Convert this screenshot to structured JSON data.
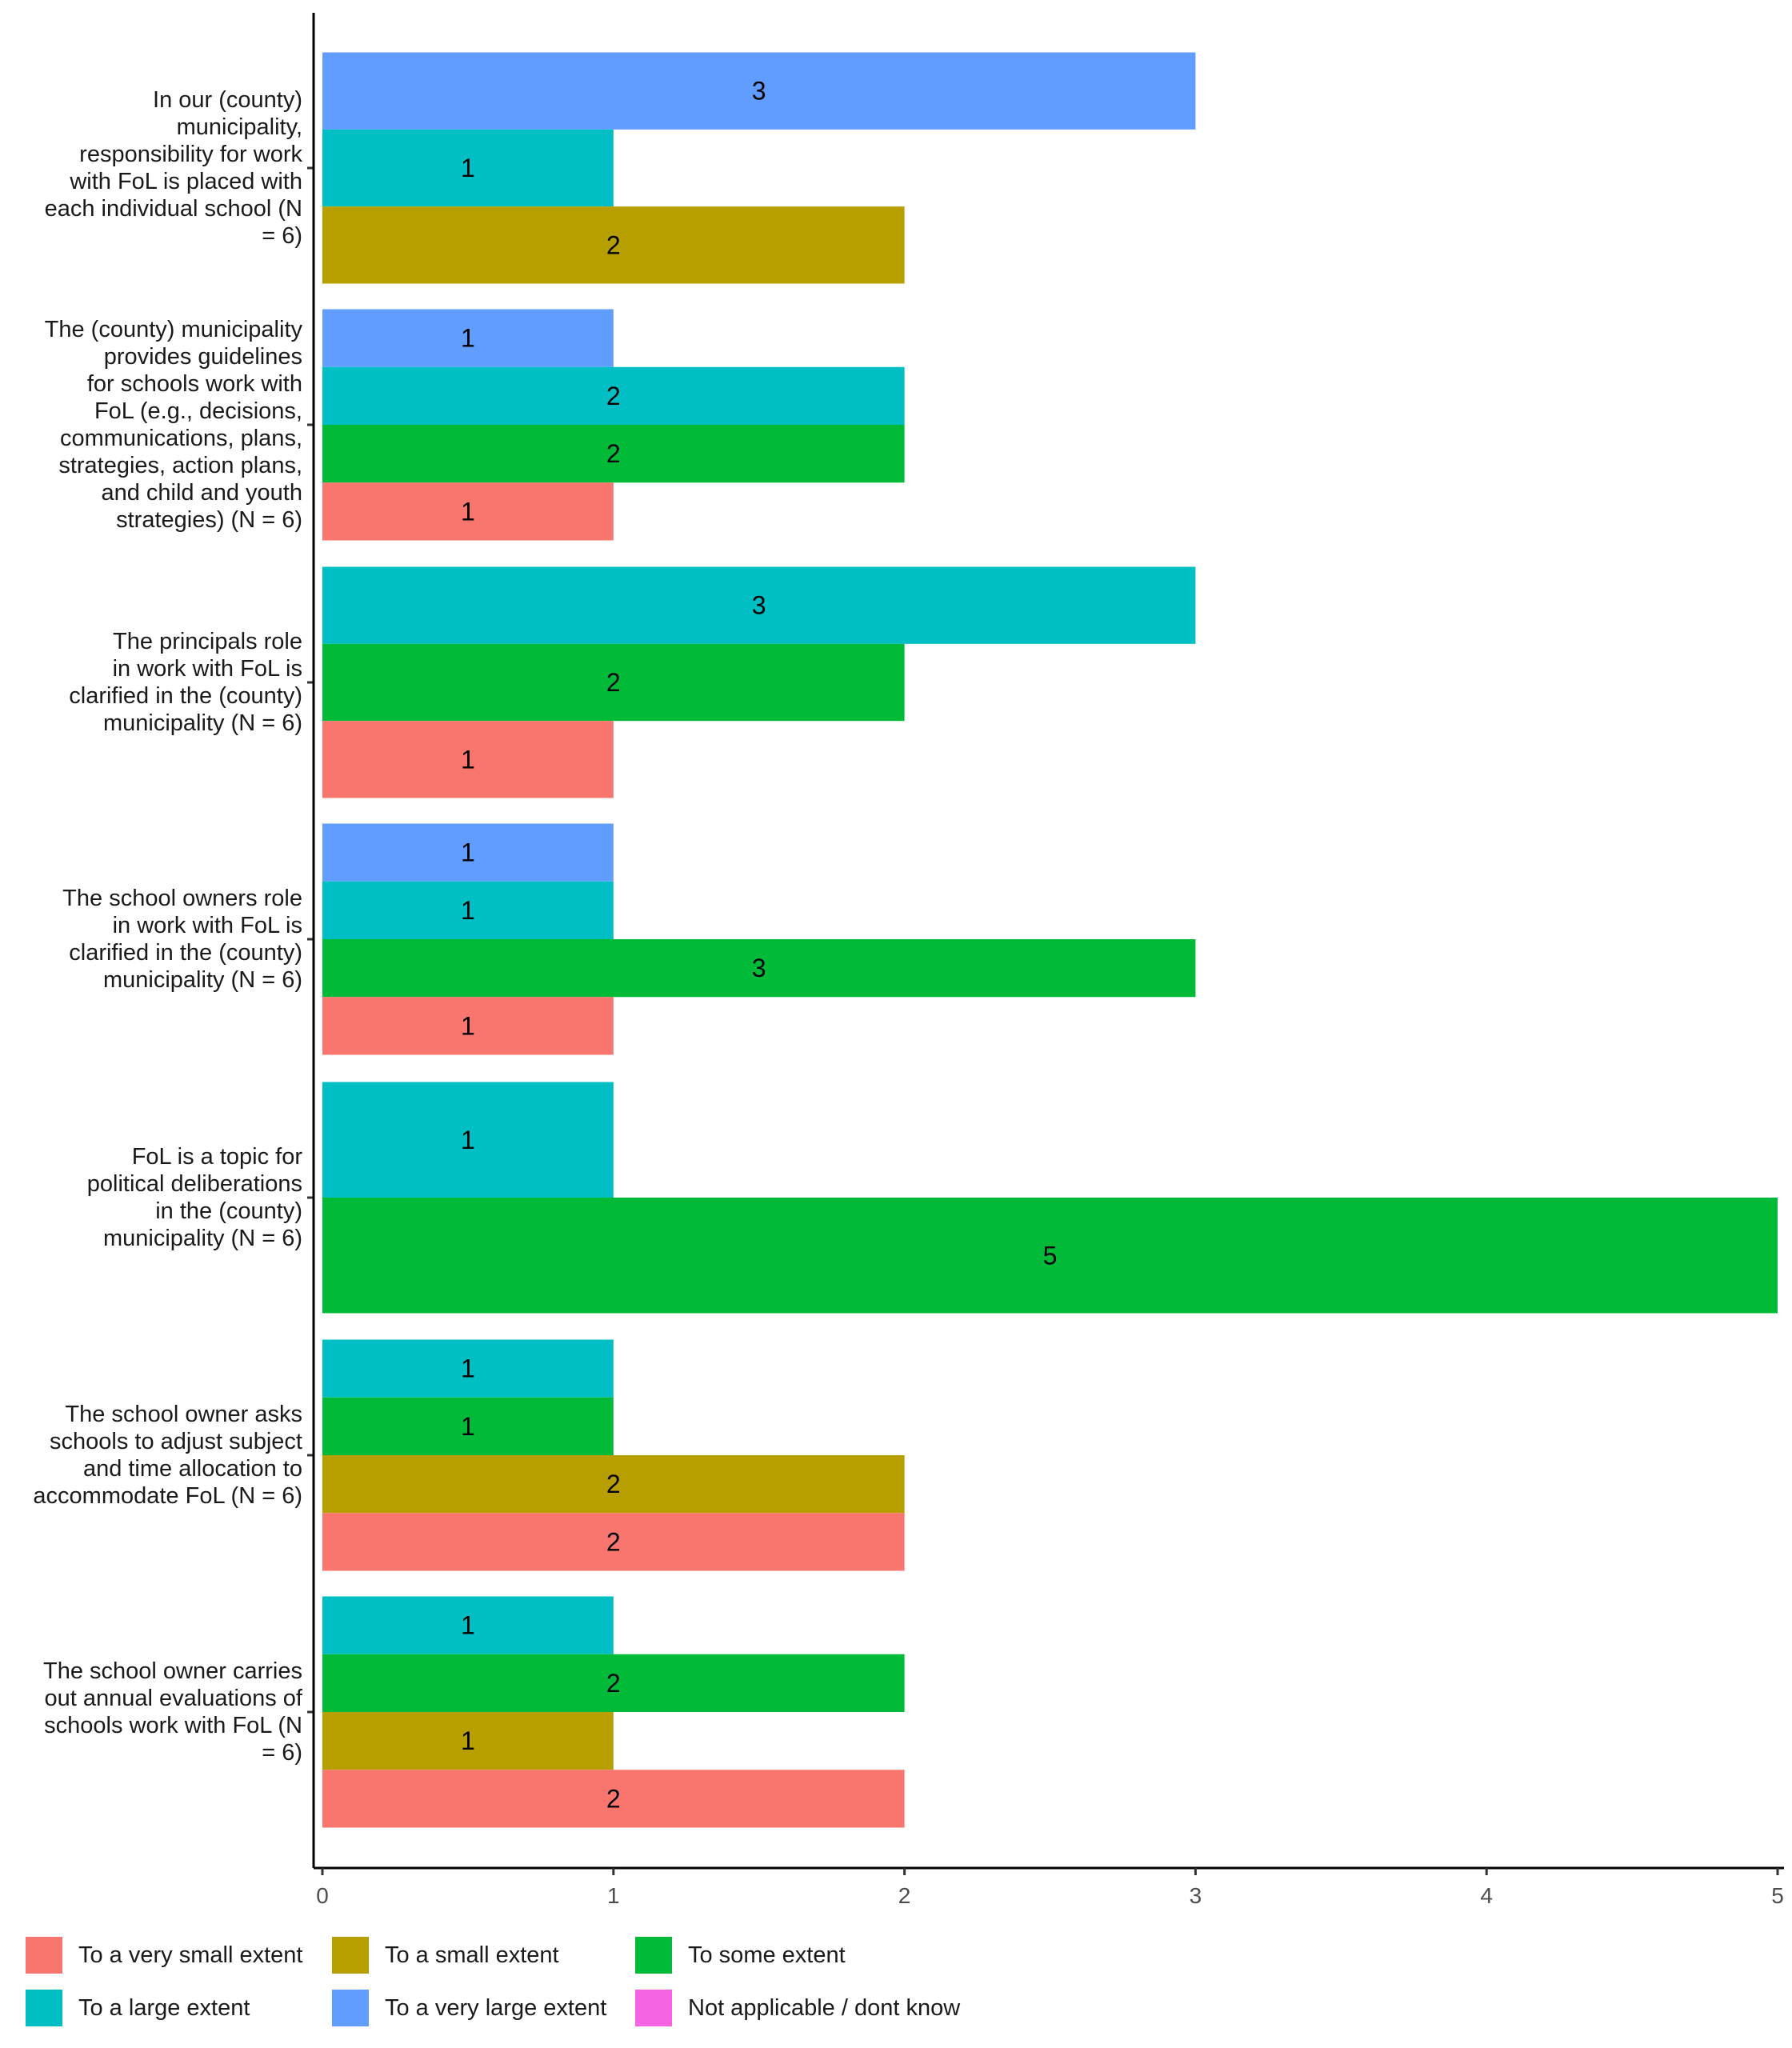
{
  "chart_data": {
    "type": "bar",
    "orientation": "horizontal",
    "title": "",
    "xlabel": "",
    "ylabel": "",
    "xlim": [
      0,
      5
    ],
    "x_ticks": [
      "0",
      "1",
      "2",
      "3",
      "4",
      "5"
    ],
    "grid": false,
    "legend_position": "bottom",
    "categories": [
      "In our (county) municipality, responsibility for work with FoL is placed with each individual school (N = 6)",
      "The (county) municipality provides guidelines for schools work with FoL (e.g., decisions, communications, plans, strategies, action plans, and child and youth strategies) (N = 6)",
      "The principals role in work with FoL is clarified in the (county) municipality (N = 6)",
      "The school owners role in work with FoL is clarified in the (county) municipality (N = 6)",
      "FoL is a topic for political deliberations in the (county) municipality (N = 6)",
      "The school owner asks schools to adjust subject and time allocation to accommodate FoL (N = 6)",
      "The school owner carries out annual evaluations of schools work with FoL (N = 6)"
    ],
    "category_lines": [
      [
        "In our (county)",
        "municipality,",
        "responsibility for work",
        "with FoL is placed with",
        "each individual school (N",
        "= 6)"
      ],
      [
        "The (county) municipality",
        "provides guidelines",
        "for schools work with",
        "FoL (e.g., decisions,",
        "communications, plans,",
        "strategies, action plans,",
        "and child and youth",
        "strategies) (N = 6)"
      ],
      [
        "The principals role",
        "in work with FoL is",
        "clarified in the (county)",
        "municipality (N = 6)"
      ],
      [
        "The school owners role",
        "in work with FoL is",
        "clarified in the (county)",
        "municipality (N = 6)"
      ],
      [
        "FoL is a topic for",
        "political deliberations",
        "in the (county)",
        "municipality (N = 6)"
      ],
      [
        "The school owner asks",
        "schools to adjust subject",
        "and time allocation to",
        "accommodate FoL (N = 6)"
      ],
      [
        "The school owner carries",
        "out annual evaluations of",
        "schools work with FoL (N",
        "= 6)"
      ]
    ],
    "series": [
      {
        "name": "To a very small extent",
        "color": "#F8766D",
        "values": [
          null,
          1,
          1,
          1,
          null,
          2,
          2
        ]
      },
      {
        "name": "To a small extent",
        "color": "#B79F00",
        "values": [
          2,
          null,
          null,
          null,
          null,
          2,
          1
        ]
      },
      {
        "name": "To some extent",
        "color": "#00BA38",
        "values": [
          null,
          2,
          2,
          3,
          5,
          1,
          2
        ]
      },
      {
        "name": "To a large extent",
        "color": "#00BFC4",
        "values": [
          1,
          2,
          3,
          1,
          1,
          1,
          1
        ]
      },
      {
        "name": "To a very large extent",
        "color": "#619CFF",
        "values": [
          3,
          1,
          null,
          1,
          null,
          null,
          null
        ]
      },
      {
        "name": "Not applicable / dont know",
        "color": "#F564E3",
        "values": [
          null,
          null,
          null,
          null,
          null,
          null,
          null
        ]
      }
    ],
    "legend": [
      {
        "label": "To a very small extent",
        "color": "#F8766D"
      },
      {
        "label": "To a small extent",
        "color": "#B79F00"
      },
      {
        "label": "To some extent",
        "color": "#00BA38"
      },
      {
        "label": "To a large extent",
        "color": "#00BFC4"
      },
      {
        "label": "To a very large extent",
        "color": "#619CFF"
      },
      {
        "label": "Not applicable / dont know",
        "color": "#F564E3"
      }
    ]
  }
}
